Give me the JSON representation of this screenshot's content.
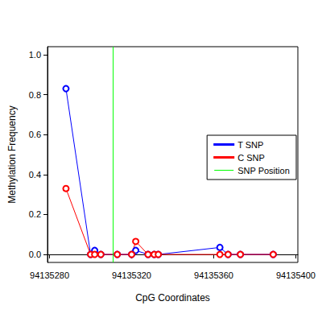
{
  "chart_data": {
    "type": "line",
    "x_label": "CpG Coordinates",
    "y_label": "Methylation Frequency",
    "x": [
      94135288,
      94135300,
      94135302,
      94135305,
      94135313,
      94135320,
      94135322,
      94135328,
      94135331,
      94135333,
      94135363,
      94135367,
      94135373,
      94135389
    ],
    "series": [
      {
        "name": "T SNP",
        "color": "#0000ff",
        "marker": "open_circle",
        "values": [
          0.83,
          0,
          0.02,
          0,
          0,
          0,
          0.02,
          0,
          0,
          0,
          0.035,
          0,
          0,
          0
        ]
      },
      {
        "name": "C SNP",
        "color": "#ff0000",
        "marker": "open_circle",
        "values": [
          0.33,
          0,
          0,
          0,
          0,
          0,
          0.065,
          0,
          0,
          0,
          0,
          0,
          0,
          0
        ]
      }
    ],
    "snp_line": {
      "name": "SNP Position",
      "color": "#00ff00",
      "x": 94135311
    },
    "xlim": [
      94135279,
      94135401
    ],
    "xticks": [
      94135280,
      94135320,
      94135360,
      94135400
    ],
    "ylim": [
      -0.04,
      1.04
    ],
    "yticks": [
      {
        "value": 0,
        "label": "0.0"
      },
      {
        "value": 0.2,
        "label": "0.2"
      },
      {
        "value": 0.4,
        "label": "0.4"
      },
      {
        "value": 0.6,
        "label": "0.6"
      },
      {
        "value": 0.8,
        "label": "0.8"
      },
      {
        "value": 1,
        "label": "1.0"
      }
    ],
    "legend": "right",
    "grid": false
  }
}
